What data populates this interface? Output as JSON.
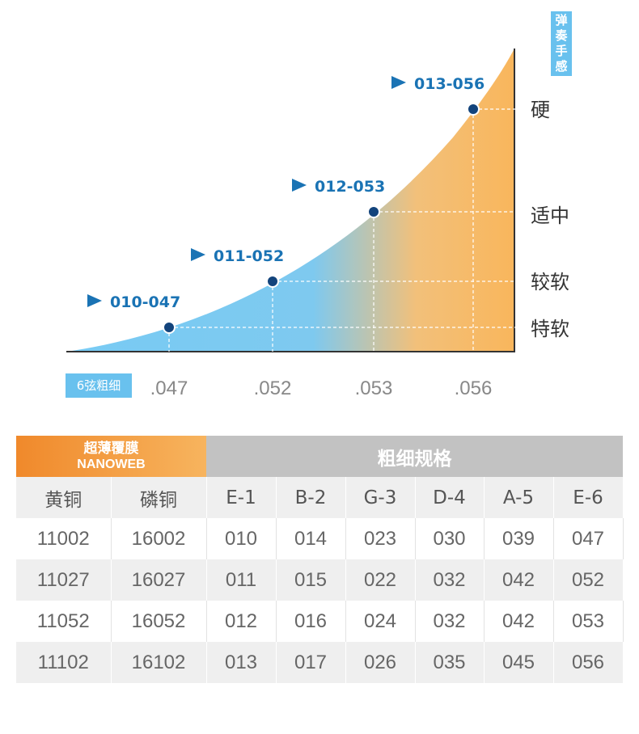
{
  "chart_data": {
    "type": "area",
    "y_axis_title": "弹奏手感",
    "x_axis_title": "6弦粗细",
    "x_ticks": [
      ".047",
      ".052",
      ".053",
      ".056"
    ],
    "feel_levels": [
      "特软",
      "较软",
      "适中",
      "硬"
    ],
    "points": [
      {
        "label": "010-047",
        "x": ".047",
        "feel": "特软"
      },
      {
        "label": "011-052",
        "x": ".052",
        "feel": "较软"
      },
      {
        "label": "012-053",
        "x": ".053",
        "feel": "适中"
      },
      {
        "label": "013-056",
        "x": ".056",
        "feel": "硬"
      }
    ],
    "colors": {
      "blue": "#78cbf4",
      "orange": "#f9b65c",
      "point": "#13447c",
      "callout": "#1a73b4",
      "badge": "#69c1ee"
    }
  },
  "table": {
    "brand_line1": "超薄覆膜",
    "brand_line2": "NANOWEB",
    "spec_title": "粗细规格",
    "headers": [
      "黄铜",
      "磷铜",
      "E-1",
      "B-2",
      "G-3",
      "D-4",
      "A-5",
      "E-6"
    ],
    "rows": [
      [
        "11002",
        "16002",
        "010",
        "014",
        "023",
        "030",
        "039",
        "047"
      ],
      [
        "11027",
        "16027",
        "011",
        "015",
        "022",
        "032",
        "042",
        "052"
      ],
      [
        "11052",
        "16052",
        "012",
        "016",
        "024",
        "032",
        "042",
        "053"
      ],
      [
        "11102",
        "16102",
        "013",
        "017",
        "026",
        "035",
        "045",
        "056"
      ]
    ]
  }
}
